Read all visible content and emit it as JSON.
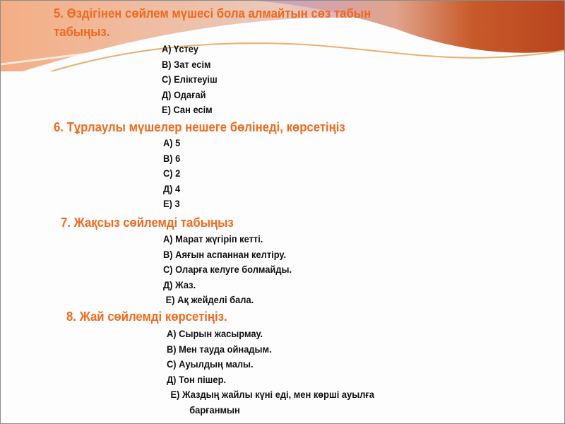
{
  "colors": {
    "heading": "#f06a1e",
    "text": "#111111",
    "accent_purple": "#9b45b0",
    "accent_orange": "#e0601e"
  },
  "questions": [
    {
      "title_line1": "5. Өздігінен сөйлем мүшесі бола алмайтын сөз табын",
      "title_line2": "табыңыз.",
      "options": [
        "А) Үстеу",
        "В) Зат есім",
        "С) Еліктеуіш",
        "Д) Одағай",
        "Е) Сан есім"
      ]
    },
    {
      "title_line1": "6. Тұрлаулы мүшелер нешеге бөлінеді, көрсетіңіз",
      "options": [
        "А) 5",
        "В) 6",
        "С) 2",
        "Д) 4",
        "Е) 3"
      ]
    },
    {
      "title_line1": "7. Жақсыз сөйлемді табыңыз",
      "options": [
        "А) Марат жүгіріп кетті.",
        "В) Аяғын аспаннан келтіру.",
        "С) Оларға келуге болмайды.",
        "Д)  Жаз.",
        "Е) Ақ жейделі бала."
      ]
    },
    {
      "title_line1": "8. Жай сөйлемді көрсетіңіз.",
      "options": [
        "А) Сырын жасырмау.",
        "В) Мен тауда ойнадым.",
        "С) Ауылдың малы.",
        "Д) Тон пішер.",
        "Е) Жаздың жайлы күні еді, мен көрші ауылға",
        "барғанмын"
      ]
    }
  ]
}
